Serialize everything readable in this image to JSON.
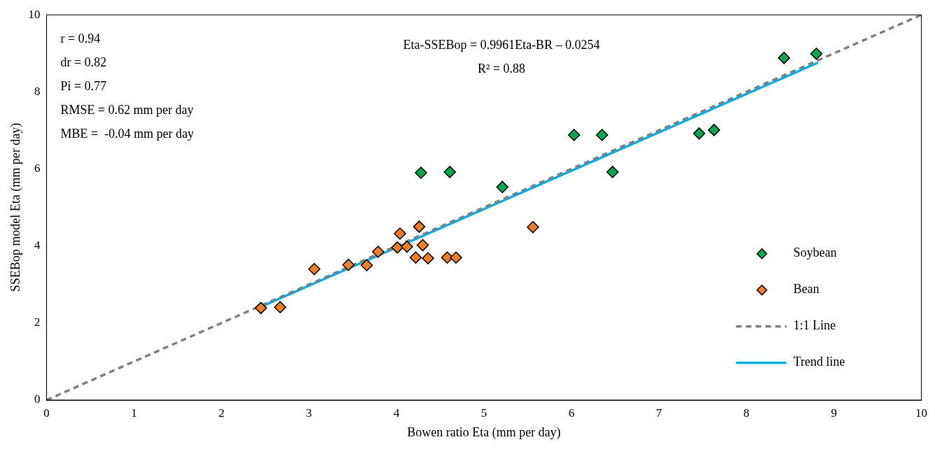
{
  "chart_data": {
    "type": "scatter",
    "xlabel": "Bowen ratio Eta (mm per day)",
    "ylabel": "SSEBop model Eta (mm per day)",
    "xlim": [
      0,
      10
    ],
    "ylim": [
      0,
      10
    ],
    "xticks": [
      0,
      1,
      2,
      3,
      4,
      5,
      6,
      7,
      8,
      9,
      10
    ],
    "yticks": [
      0,
      2,
      4,
      6,
      8,
      10
    ],
    "grid": false,
    "legend": "right",
    "marker": "diamond",
    "annotations": [
      "r = 0.94",
      "dr = 0.82",
      "Pi = 0.77",
      "RMSE = 0.62 mm per day",
      "MBE =  -0.04 mm per day",
      "Eta-SSEBop = 0.9961Eta-BR – 0.0254",
      "R² = 0.88"
    ],
    "series": [
      {
        "name": "Soybean",
        "color": "#00a651",
        "x": [
          4.28,
          4.61,
          5.21,
          6.03,
          6.35,
          6.47,
          7.46,
          7.63,
          8.43,
          8.8
        ],
        "values": [
          5.9,
          5.92,
          5.53,
          6.88,
          6.88,
          5.92,
          6.92,
          7.01,
          8.88,
          8.99
        ]
      },
      {
        "name": "Bean",
        "color": "#ee7d2a",
        "x": [
          2.45,
          2.67,
          3.06,
          3.45,
          3.66,
          3.79,
          4.01,
          4.12,
          4.04,
          4.26,
          4.3,
          4.22,
          4.36,
          4.58,
          4.68,
          5.56
        ],
        "values": [
          2.39,
          2.41,
          3.4,
          3.51,
          3.5,
          3.85,
          3.96,
          3.98,
          4.32,
          4.5,
          4.02,
          3.7,
          3.68,
          3.7,
          3.7,
          4.49
        ]
      },
      {
        "name": "1:1 Line",
        "type": "line",
        "color": "#808080",
        "line_style": "dashed",
        "marker": "none",
        "x": [
          0,
          10
        ],
        "values": [
          0,
          10
        ]
      },
      {
        "name": "Trend line",
        "type": "line",
        "color": "#00aee8",
        "line_style": "solid",
        "marker": "none",
        "x": [
          2.45,
          8.82
        ],
        "values": [
          2.42,
          8.76
        ]
      }
    ]
  }
}
